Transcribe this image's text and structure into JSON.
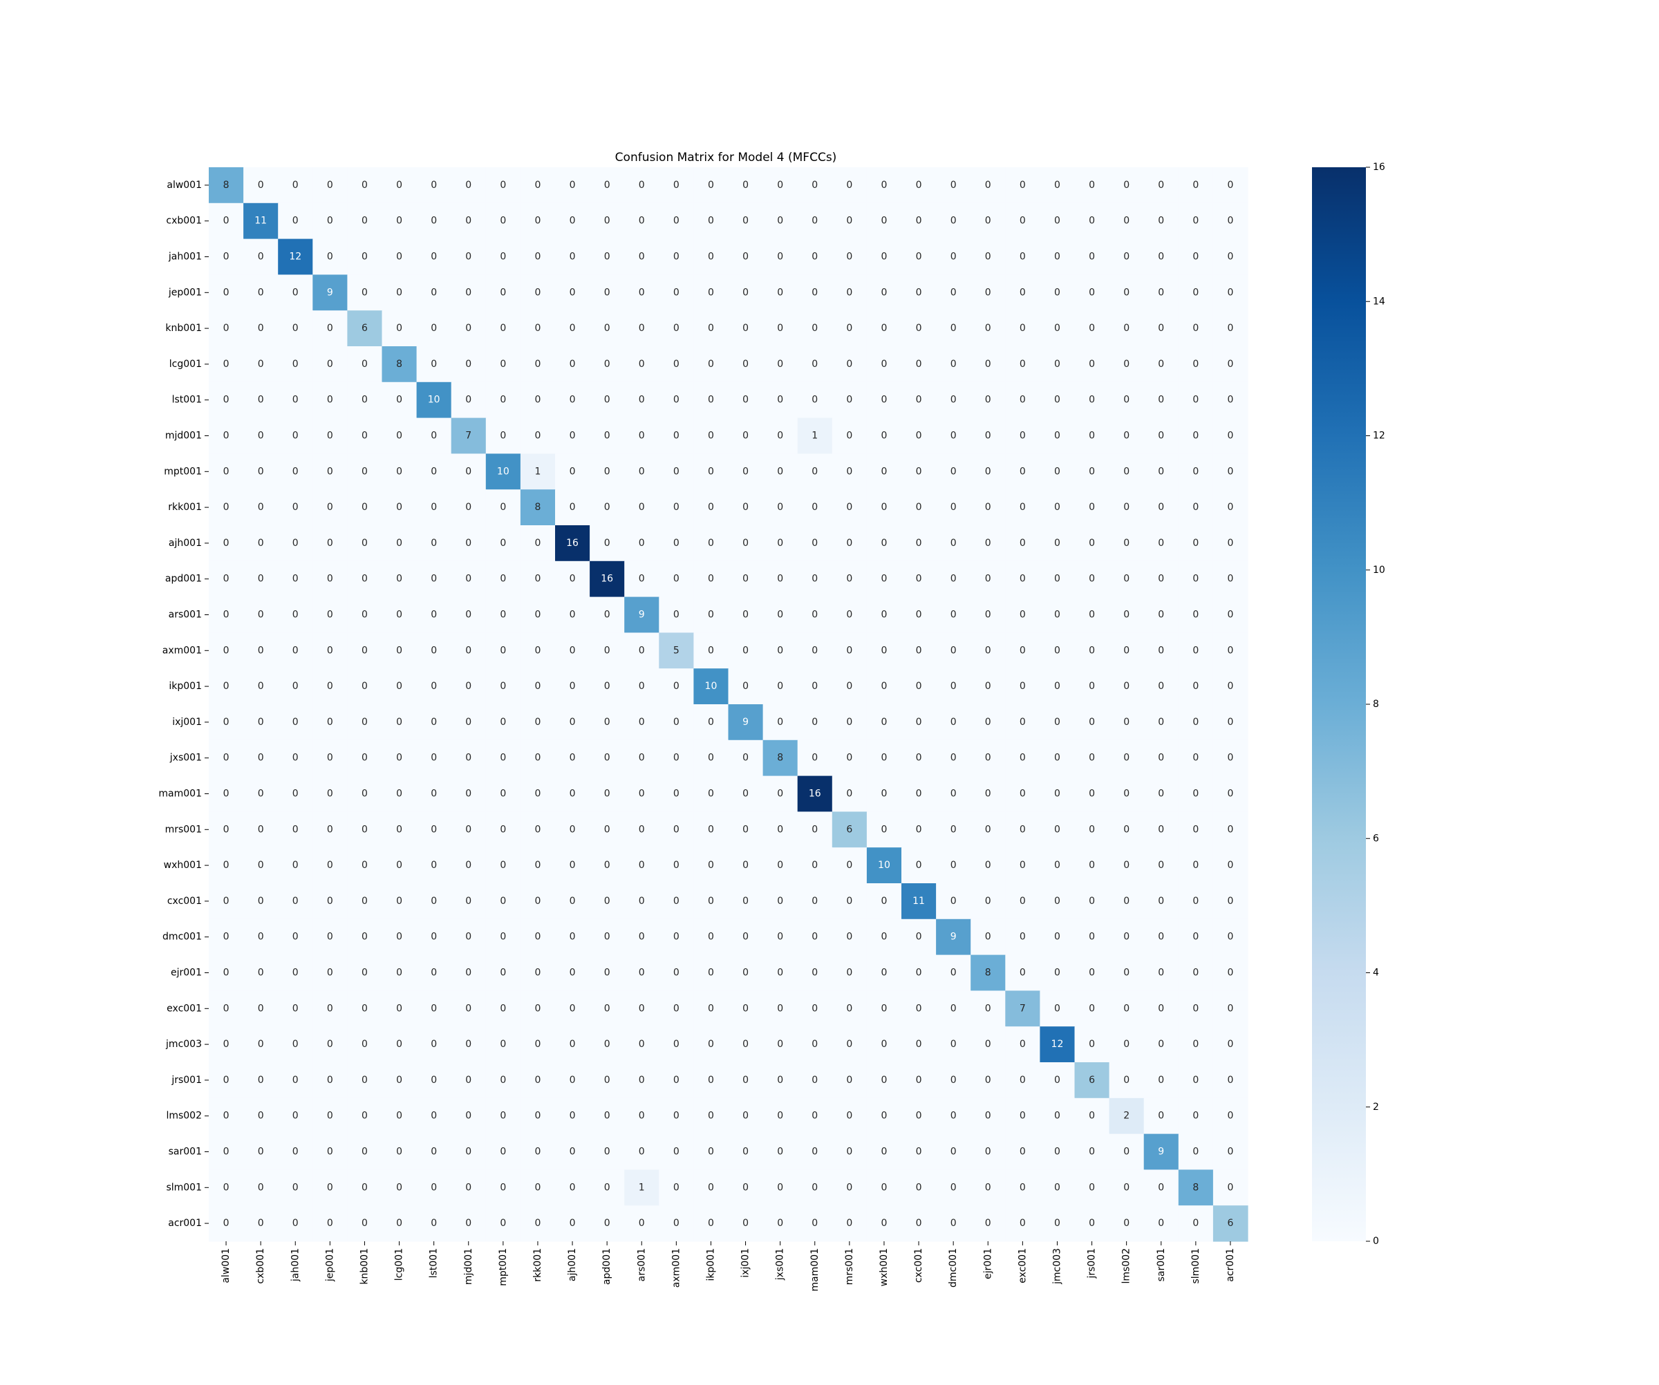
{
  "chart_data": {
    "type": "heatmap",
    "title": "Confusion Matrix for Model 4 (MFCCs)",
    "xlabel": "",
    "ylabel": "",
    "row_labels": [
      "alw001",
      "cxb001",
      "jah001",
      "jep001",
      "knb001",
      "lcg001",
      "lst001",
      "mjd001",
      "mpt001",
      "rkk001",
      "ajh001",
      "apd001",
      "ars001",
      "axm001",
      "ikp001",
      "ixj001",
      "jxs001",
      "mam001",
      "mrs001",
      "wxh001",
      "cxc001",
      "dmc001",
      "ejr001",
      "exc001",
      "jmc003",
      "jrs001",
      "lms002",
      "sar001",
      "slm001",
      "acr001"
    ],
    "col_labels": [
      "alw001",
      "cxb001",
      "jah001",
      "jep001",
      "knb001",
      "lcg001",
      "lst001",
      "mjd001",
      "mpt001",
      "rkk001",
      "ajh001",
      "apd001",
      "ars001",
      "axm001",
      "ikp001",
      "ixj001",
      "jxs001",
      "mam001",
      "mrs001",
      "wxh001",
      "cxc001",
      "dmc001",
      "ejr001",
      "exc001",
      "jmc003",
      "jrs001",
      "lms002",
      "sar001",
      "slm001",
      "acr001"
    ],
    "diagonal": [
      8,
      11,
      12,
      9,
      6,
      8,
      10,
      7,
      10,
      8,
      16,
      16,
      9,
      5,
      10,
      9,
      8,
      16,
      6,
      10,
      11,
      9,
      8,
      7,
      12,
      6,
      2,
      9,
      8,
      6
    ],
    "off_diagonal": [
      {
        "row": "mjd001",
        "col": "mam001",
        "value": 1
      },
      {
        "row": "mpt001",
        "col": "rkk001",
        "value": 1
      },
      {
        "row": "slm001",
        "col": "ars001",
        "value": 1
      }
    ],
    "colorbar": {
      "min": 0,
      "max": 16,
      "ticks": [
        0,
        2,
        4,
        6,
        8,
        10,
        12,
        14,
        16
      ],
      "colormap": "Blues",
      "low_color": "#f7fbff",
      "high_color": "#08306b"
    },
    "grid": false
  }
}
